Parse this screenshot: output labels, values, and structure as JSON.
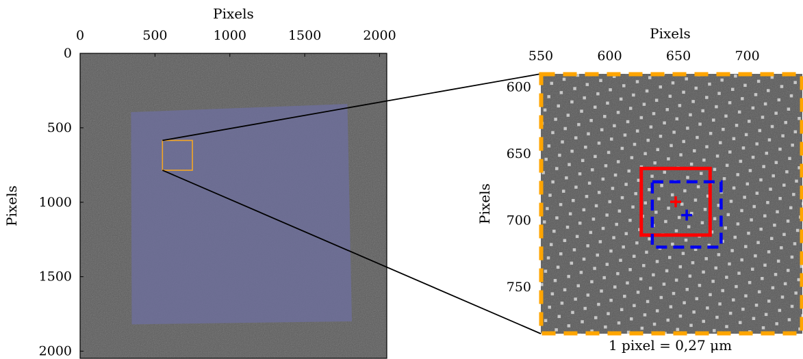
{
  "chart_data": [
    {
      "type": "image",
      "xlabel": "Pixels",
      "ylabel": "Pixels",
      "xlim": [
        0,
        2048
      ],
      "ylim": [
        2048,
        0
      ],
      "xticks": [
        0,
        500,
        1000,
        1500,
        2000
      ],
      "yticks": [
        0,
        500,
        1000,
        1500,
        2000
      ],
      "x_axis_position": "top",
      "grid": false,
      "overlay_polygon": [
        [
          340,
          395
        ],
        [
          1785,
          340
        ],
        [
          1815,
          1800
        ],
        [
          345,
          1820
        ]
      ],
      "zoom_box": {
        "x0": 550,
        "x1": 750,
        "y0": 585,
        "y1": 785
      },
      "colors": {
        "background_image": "#5a5a5a",
        "overlay": "#6d6f9a",
        "zoom_box": "#f5a623"
      }
    },
    {
      "type": "image",
      "xlabel": "Pixels",
      "ylabel": "Pixels",
      "xlim": [
        550,
        740
      ],
      "ylim": [
        785,
        590
      ],
      "xticks": [
        550,
        600,
        650,
        700
      ],
      "yticks": [
        600,
        650,
        700,
        750
      ],
      "x_axis_position": "top",
      "grid": false,
      "caption": "1 pixel = 0,27 μm",
      "frame_style": "orange-dashed",
      "red_box": {
        "x0": 623,
        "x1": 673,
        "y0": 661,
        "y1": 711
      },
      "red_center": {
        "x": 648,
        "y": 686
      },
      "blue_box": {
        "x0": 631,
        "x1": 681,
        "y0": 671,
        "y1": 720
      },
      "blue_center": {
        "x": 656,
        "y": 696
      },
      "colors": {
        "frame": "#ffa500",
        "red": "#ff0000",
        "blue": "#0000ee",
        "background_image": "#565656",
        "dots": "#d8d8d8"
      }
    }
  ]
}
